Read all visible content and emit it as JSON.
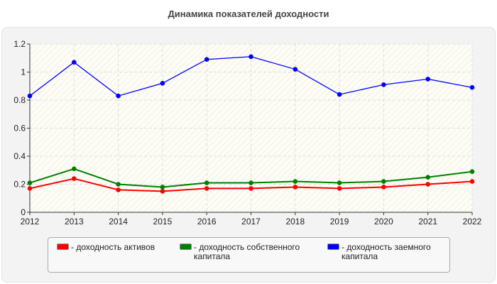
{
  "chart_data": {
    "type": "line",
    "title": "Динамика показателей доходности",
    "x": [
      "2012",
      "2013",
      "2014",
      "2015",
      "2016",
      "2017",
      "2018",
      "2019",
      "2020",
      "2021",
      "2022"
    ],
    "ylim": [
      0,
      1.2
    ],
    "yticks": [
      "0",
      "0.2",
      "0.4",
      "0.6",
      "0.8",
      "1",
      "1.2"
    ],
    "grid": true,
    "legend_position": "bottom",
    "series": [
      {
        "name": "- доходность активов",
        "color": "#ff0000",
        "values": [
          0.17,
          0.24,
          0.16,
          0.15,
          0.17,
          0.17,
          0.18,
          0.17,
          0.18,
          0.2,
          0.22
        ]
      },
      {
        "name": "- доходность собственного капитала",
        "color": "#008000",
        "values": [
          0.21,
          0.31,
          0.2,
          0.18,
          0.21,
          0.21,
          0.22,
          0.21,
          0.22,
          0.25,
          0.29
        ]
      },
      {
        "name": "- доходность заемного капитала",
        "color": "#0000ff",
        "values": [
          0.83,
          1.07,
          0.83,
          0.92,
          1.09,
          1.11,
          1.02,
          0.84,
          0.91,
          0.95,
          0.89
        ]
      }
    ]
  }
}
